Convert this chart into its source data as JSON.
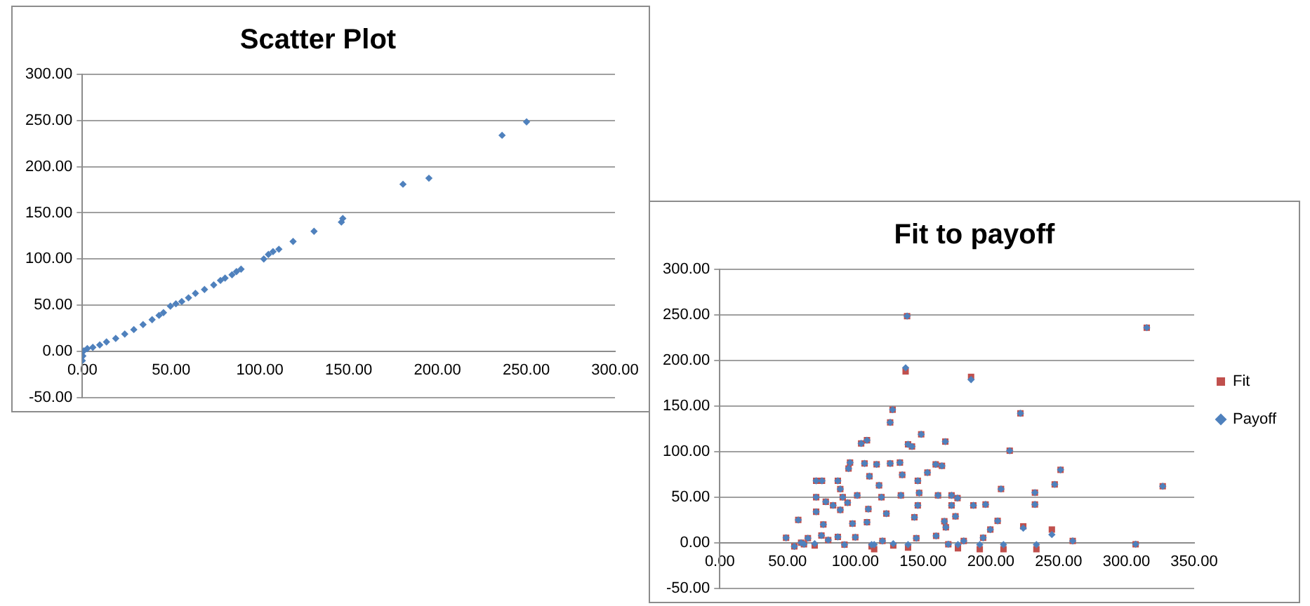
{
  "chart_data": [
    {
      "type": "scatter",
      "title": "Scatter Plot",
      "marker": "diamond",
      "grid": "y",
      "legend": false,
      "series": [
        {
          "color": "#4f81bd",
          "x": [
            250.2,
            236.4,
            195.2,
            180.6,
            145.9,
            146.7,
            130.5,
            118.7,
            110.7,
            107.4,
            104.8,
            102.2,
            89.4,
            86.8,
            84.3,
            80.4,
            77.8,
            74,
            68.8,
            63.7,
            59.8,
            56,
            52.7,
            49.6,
            45.7,
            43.2,
            39.3,
            34.2,
            29,
            23.9,
            18.8,
            13.6,
            9.8,
            5.9,
            2.8,
            0.8,
            0.3,
            0
          ],
          "values": [
            248.5,
            234,
            187.5,
            181,
            140,
            144,
            130,
            119,
            110.6,
            108,
            105,
            100,
            89,
            86.4,
            83,
            79.4,
            76.8,
            72,
            67,
            62.8,
            58,
            54,
            51.5,
            49,
            42,
            39,
            34.4,
            29,
            23.6,
            18.8,
            14,
            10.2,
            7,
            4.3,
            3,
            0.5,
            -5,
            -10
          ]
        }
      ],
      "xlim": [
        0,
        300
      ],
      "xticks": [
        {
          "value": 0,
          "label": "0.00"
        },
        {
          "value": 50,
          "label": "50.00"
        },
        {
          "value": 100,
          "label": "100.00"
        },
        {
          "value": 150,
          "label": "150.00"
        },
        {
          "value": 200,
          "label": "200.00"
        },
        {
          "value": 250,
          "label": "250.00"
        },
        {
          "value": 300,
          "label": "300.00"
        }
      ],
      "ylim": [
        -50,
        300
      ],
      "yticks": [
        {
          "value": -50,
          "label": "-50.00"
        },
        {
          "value": 0,
          "label": "0.00"
        },
        {
          "value": 50,
          "label": "50.00"
        },
        {
          "value": 100,
          "label": "100.00"
        },
        {
          "value": 150,
          "label": "150.00"
        },
        {
          "value": 200,
          "label": "200.00"
        },
        {
          "value": 250,
          "label": "250.00"
        },
        {
          "value": 300,
          "label": "300.00"
        }
      ]
    },
    {
      "type": "scatter",
      "title": "Fit to payoff",
      "grid": "y",
      "legend": "right",
      "series": [
        {
          "name": "Fit",
          "color": "#c0504d",
          "marker": "square",
          "x": [
            48.9,
            57.9,
            55,
            62.1,
            71.1,
            75.4,
            71.1,
            71.1,
            76.4,
            78.2,
            83.6,
            87.1,
            87.1,
            88.9,
            90.7,
            88.9,
            94.3,
            95,
            96.1,
            97.9,
            101.4,
            104.3,
            108.6,
            106.8,
            110.4,
            109.6,
            108.6,
            113.9,
            115.7,
            117.5,
            119.3,
            122.9,
            125.7,
            127.5,
            125.7,
            132.9,
            134.6,
            133.6,
            137.1,
            138.2,
            138.9,
            141.8,
            146.1,
            147.1,
            148.6,
            146.1,
            143.6,
            138.9,
            60,
            65,
            70,
            75,
            80,
            92,
            100,
            112,
            120,
            128,
            145,
            153.2,
            159.3,
            163.9,
            166.4,
            161,
            171,
            171,
            175.4,
            173.9,
            165.7,
            166.8,
            159.6,
            168.6,
            175.7,
            180,
            187.1,
            185.4,
            191.8,
            194.3,
            196.1,
            199.6,
            205,
            207.5,
            209.3,
            213.9,
            221.8,
            223.9,
            232.5,
            232.5,
            233.6,
            245,
            247.1,
            251.4,
            260.4,
            306.8,
            315,
            326.8
          ],
          "values": [
            5.4,
            25,
            -4,
            -1.6,
            68,
            68,
            50,
            34,
            20,
            45,
            41,
            6.4,
            68,
            59,
            50,
            36,
            44,
            81.5,
            88,
            21,
            52,
            109,
            112.5,
            87,
            73,
            37,
            22.5,
            -7,
            86,
            63,
            50,
            32,
            132,
            146,
            87,
            88,
            74.5,
            52,
            188,
            248.7,
            108,
            105.6,
            41,
            54.7,
            119,
            68,
            28,
            -5.4,
            0,
            5,
            -3,
            8,
            3,
            -2,
            6,
            -4,
            2,
            -3,
            5,
            77,
            86,
            84.4,
            111,
            52,
            52,
            41,
            49,
            29,
            23.6,
            17,
            7.5,
            -1.6,
            -6,
            2,
            41,
            182,
            -7,
            5.4,
            42,
            14.5,
            24,
            59,
            -7,
            101,
            142,
            18,
            55,
            42,
            -7,
            14.5,
            64,
            80,
            2,
            -1.6,
            236,
            62
          ]
        },
        {
          "name": "Payoff",
          "color": "#4f81bd",
          "marker": "diamond",
          "x": [
            48.9,
            57.9,
            55,
            62.1,
            71.1,
            75.4,
            71.1,
            71.1,
            76.4,
            78.2,
            83.6,
            87.1,
            87.1,
            88.9,
            90.7,
            88.9,
            94.3,
            95,
            96.1,
            97.9,
            101.4,
            104.3,
            108.6,
            106.8,
            110.4,
            109.6,
            108.6,
            113.9,
            115.7,
            117.5,
            119.3,
            122.9,
            125.7,
            127.5,
            125.7,
            132.9,
            134.6,
            133.6,
            137.1,
            138.2,
            138.9,
            141.8,
            146.1,
            147.1,
            148.6,
            146.1,
            143.6,
            138.9,
            60,
            65,
            70,
            75,
            80,
            92,
            100,
            112,
            120,
            128,
            145,
            153.2,
            159.3,
            163.9,
            166.4,
            161,
            171,
            171,
            175.4,
            173.9,
            165.7,
            166.8,
            159.6,
            168.6,
            175.7,
            180,
            187.1,
            185.4,
            191.8,
            194.3,
            196.1,
            199.6,
            205,
            207.5,
            209.3,
            213.9,
            221.8,
            223.9,
            232.5,
            232.5,
            233.6,
            245,
            247.1,
            251.4,
            260.4,
            306.8,
            315,
            326.8
          ],
          "values": [
            5.4,
            25,
            -4,
            -1.6,
            68,
            68,
            50,
            34,
            20,
            45,
            41,
            6.4,
            68,
            59,
            50,
            36,
            44,
            81.5,
            88,
            21,
            52,
            109,
            112.5,
            87,
            73,
            37,
            22.5,
            -2,
            86,
            63,
            50,
            32,
            132,
            146,
            87,
            88,
            74.5,
            52,
            192,
            248.7,
            108,
            105.6,
            41,
            54.7,
            119,
            68,
            28,
            -2,
            0,
            5,
            -1,
            8,
            3,
            -2,
            6,
            -2,
            2,
            -1,
            5,
            77,
            86,
            84.4,
            111,
            52,
            52,
            41,
            49,
            29,
            23.6,
            17,
            7.5,
            -1.6,
            -2,
            2,
            41,
            179,
            -2,
            5.4,
            42,
            14.5,
            24,
            59,
            -2,
            101,
            142,
            16,
            55,
            42,
            -2,
            9,
            64,
            80,
            2,
            -1.6,
            236,
            62
          ]
        }
      ],
      "xlim": [
        0,
        350
      ],
      "xticks": [
        {
          "value": 0,
          "label": "0.00"
        },
        {
          "value": 50,
          "label": "50.00"
        },
        {
          "value": 100,
          "label": "100.00"
        },
        {
          "value": 150,
          "label": "150.00"
        },
        {
          "value": 200,
          "label": "200.00"
        },
        {
          "value": 250,
          "label": "250.00"
        },
        {
          "value": 300,
          "label": "300.00"
        },
        {
          "value": 350,
          "label": "350.00"
        }
      ],
      "ylim": [
        -50,
        300
      ],
      "yticks": [
        {
          "value": -50,
          "label": "-50.00"
        },
        {
          "value": 0,
          "label": "0.00"
        },
        {
          "value": 50,
          "label": "50.00"
        },
        {
          "value": 100,
          "label": "100.00"
        },
        {
          "value": 150,
          "label": "150.00"
        },
        {
          "value": 200,
          "label": "200.00"
        },
        {
          "value": 250,
          "label": "250.00"
        },
        {
          "value": 300,
          "label": "300.00"
        }
      ]
    }
  ]
}
